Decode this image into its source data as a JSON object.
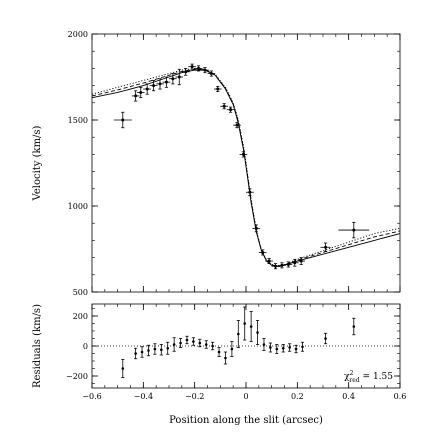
{
  "chart_data": [
    {
      "type": "scatter",
      "panel": "main",
      "xlabel": "",
      "ylabel": "Velocity (km/s)",
      "xlim": [
        -0.6,
        0.6
      ],
      "ylim": [
        500,
        2000
      ],
      "xticks": [
        -0.6,
        -0.4,
        -0.2,
        0,
        0.2,
        0.4,
        0.6
      ],
      "yticks": [
        500,
        1000,
        1500,
        2000
      ],
      "ytick_labels": [
        "500",
        "1000",
        "1500",
        "2000"
      ],
      "points": [
        {
          "x": -0.48,
          "y": 1500,
          "xerr": 0.035,
          "yerr": 45
        },
        {
          "x": -0.43,
          "y": 1640,
          "xerr": 0.015,
          "yerr": 30
        },
        {
          "x": -0.41,
          "y": 1660,
          "xerr": 0.015,
          "yerr": 30
        },
        {
          "x": -0.385,
          "y": 1680,
          "xerr": 0.015,
          "yerr": 30
        },
        {
          "x": -0.36,
          "y": 1700,
          "xerr": 0.015,
          "yerr": 30
        },
        {
          "x": -0.335,
          "y": 1710,
          "xerr": 0.015,
          "yerr": 30
        },
        {
          "x": -0.31,
          "y": 1720,
          "xerr": 0.015,
          "yerr": 30
        },
        {
          "x": -0.285,
          "y": 1740,
          "xerr": 0.015,
          "yerr": 30
        },
        {
          "x": -0.26,
          "y": 1750,
          "xerr": 0.015,
          "yerr": 45
        },
        {
          "x": -0.235,
          "y": 1780,
          "xerr": 0.015,
          "yerr": 20
        },
        {
          "x": -0.21,
          "y": 1810,
          "xerr": 0.015,
          "yerr": 15
        },
        {
          "x": -0.185,
          "y": 1800,
          "xerr": 0.015,
          "yerr": 15
        },
        {
          "x": -0.16,
          "y": 1790,
          "xerr": 0.015,
          "yerr": 15
        },
        {
          "x": -0.135,
          "y": 1770,
          "xerr": 0.015,
          "yerr": 15
        },
        {
          "x": -0.11,
          "y": 1680,
          "xerr": 0.015,
          "yerr": 15
        },
        {
          "x": -0.085,
          "y": 1580,
          "xerr": 0.015,
          "yerr": 15
        },
        {
          "x": -0.06,
          "y": 1560,
          "xerr": 0.015,
          "yerr": 15
        },
        {
          "x": -0.035,
          "y": 1470,
          "xerr": 0.015,
          "yerr": 15
        },
        {
          "x": -0.01,
          "y": 1300,
          "xerr": 0.015,
          "yerr": 15
        },
        {
          "x": 0.015,
          "y": 1080,
          "xerr": 0.015,
          "yerr": 20
        },
        {
          "x": 0.04,
          "y": 870,
          "xerr": 0.015,
          "yerr": 20
        },
        {
          "x": 0.065,
          "y": 730,
          "xerr": 0.015,
          "yerr": 15
        },
        {
          "x": 0.09,
          "y": 680,
          "xerr": 0.015,
          "yerr": 15
        },
        {
          "x": 0.115,
          "y": 650,
          "xerr": 0.015,
          "yerr": 15
        },
        {
          "x": 0.14,
          "y": 655,
          "xerr": 0.015,
          "yerr": 15
        },
        {
          "x": 0.165,
          "y": 660,
          "xerr": 0.015,
          "yerr": 15
        },
        {
          "x": 0.19,
          "y": 670,
          "xerr": 0.015,
          "yerr": 20
        },
        {
          "x": 0.215,
          "y": 680,
          "xerr": 0.015,
          "yerr": 20
        },
        {
          "x": 0.31,
          "y": 760,
          "xerr": 0.02,
          "yerr": 25
        },
        {
          "x": 0.42,
          "y": 860,
          "xerr": 0.06,
          "yerr": 45
        }
      ],
      "curves": [
        {
          "style": "solid",
          "x": [
            -0.6,
            -0.5,
            -0.4,
            -0.3,
            -0.25,
            -0.2,
            -0.16,
            -0.12,
            -0.08,
            -0.05,
            -0.03,
            -0.01,
            0.0,
            0.02,
            0.04,
            0.06,
            0.08,
            0.1,
            0.13,
            0.16,
            0.2,
            0.3,
            0.4,
            0.5,
            0.6
          ],
          "y": [
            1630,
            1660,
            1700,
            1750,
            1775,
            1790,
            1790,
            1760,
            1680,
            1590,
            1480,
            1330,
            1230,
            1020,
            850,
            740,
            680,
            655,
            648,
            660,
            680,
            720,
            760,
            800,
            840
          ]
        },
        {
          "style": "dotted",
          "x": [
            -0.6,
            -0.5,
            -0.4,
            -0.3,
            -0.25,
            -0.2,
            -0.16,
            -0.12,
            -0.08,
            -0.05,
            -0.03,
            -0.01,
            0.0,
            0.02,
            0.04,
            0.06,
            0.08,
            0.1,
            0.13,
            0.16,
            0.2,
            0.3,
            0.4,
            0.5,
            0.6
          ],
          "y": [
            1650,
            1690,
            1730,
            1770,
            1790,
            1800,
            1795,
            1765,
            1690,
            1600,
            1500,
            1350,
            1250,
            1040,
            860,
            745,
            685,
            660,
            652,
            665,
            690,
            740,
            790,
            840,
            870
          ]
        },
        {
          "style": "dashed",
          "x": [
            -0.6,
            -0.5,
            -0.4,
            -0.3,
            -0.25,
            -0.2,
            -0.16,
            -0.12,
            -0.08,
            -0.05,
            -0.03,
            -0.01,
            0.0,
            0.02,
            0.04,
            0.06,
            0.08,
            0.1,
            0.13,
            0.16,
            0.2,
            0.3,
            0.4,
            0.5,
            0.6
          ],
          "y": [
            1640,
            1675,
            1715,
            1760,
            1782,
            1795,
            1792,
            1762,
            1685,
            1595,
            1490,
            1340,
            1240,
            1030,
            855,
            742,
            682,
            658,
            650,
            662,
            685,
            730,
            775,
            820,
            855
          ]
        }
      ]
    },
    {
      "type": "scatter",
      "panel": "residuals",
      "xlabel": "Position along the slit (arcsec)",
      "ylabel": "Residuals (km/s)",
      "xlim": [
        -0.6,
        0.6
      ],
      "ylim": [
        -280,
        280
      ],
      "xticks": [
        -0.6,
        -0.4,
        -0.2,
        0,
        0.2,
        0.4,
        0.6
      ],
      "xtick_labels": [
        "−0.6",
        "−0.4",
        "−0.2",
        "0",
        "0.2",
        "0.4",
        "0.6"
      ],
      "yticks": [
        -200,
        0,
        200
      ],
      "ytick_labels": [
        "−200",
        "0",
        "200"
      ],
      "zero_line": true,
      "annotation": "χ²red = 1.55",
      "points": [
        {
          "x": -0.48,
          "y": -150,
          "yerr": 60
        },
        {
          "x": -0.43,
          "y": -50,
          "yerr": 35
        },
        {
          "x": -0.405,
          "y": -40,
          "yerr": 35
        },
        {
          "x": -0.38,
          "y": -30,
          "yerr": 35
        },
        {
          "x": -0.355,
          "y": -20,
          "yerr": 35
        },
        {
          "x": -0.33,
          "y": -25,
          "yerr": 35
        },
        {
          "x": -0.305,
          "y": -15,
          "yerr": 40
        },
        {
          "x": -0.28,
          "y": 10,
          "yerr": 45
        },
        {
          "x": -0.255,
          "y": 20,
          "yerr": 30
        },
        {
          "x": -0.23,
          "y": 40,
          "yerr": 25
        },
        {
          "x": -0.205,
          "y": 30,
          "yerr": 25
        },
        {
          "x": -0.18,
          "y": 20,
          "yerr": 25
        },
        {
          "x": -0.155,
          "y": 10,
          "yerr": 25
        },
        {
          "x": -0.13,
          "y": 0,
          "yerr": 25
        },
        {
          "x": -0.105,
          "y": -40,
          "yerr": 30
        },
        {
          "x": -0.08,
          "y": -80,
          "yerr": 40
        },
        {
          "x": -0.055,
          "y": -20,
          "yerr": 50
        },
        {
          "x": -0.03,
          "y": 80,
          "yerr": 90
        },
        {
          "x": -0.005,
          "y": 150,
          "yerr": 110
        },
        {
          "x": 0.02,
          "y": 130,
          "yerr": 100
        },
        {
          "x": 0.045,
          "y": 90,
          "yerr": 80
        },
        {
          "x": 0.07,
          "y": 10,
          "yerr": 40
        },
        {
          "x": 0.095,
          "y": -10,
          "yerr": 30
        },
        {
          "x": 0.12,
          "y": -20,
          "yerr": 30
        },
        {
          "x": 0.145,
          "y": -15,
          "yerr": 25
        },
        {
          "x": 0.17,
          "y": -10,
          "yerr": 25
        },
        {
          "x": 0.195,
          "y": -20,
          "yerr": 25
        },
        {
          "x": 0.22,
          "y": -5,
          "yerr": 30
        },
        {
          "x": 0.31,
          "y": 50,
          "yerr": 35
        },
        {
          "x": 0.42,
          "y": 130,
          "yerr": 55
        }
      ]
    }
  ]
}
